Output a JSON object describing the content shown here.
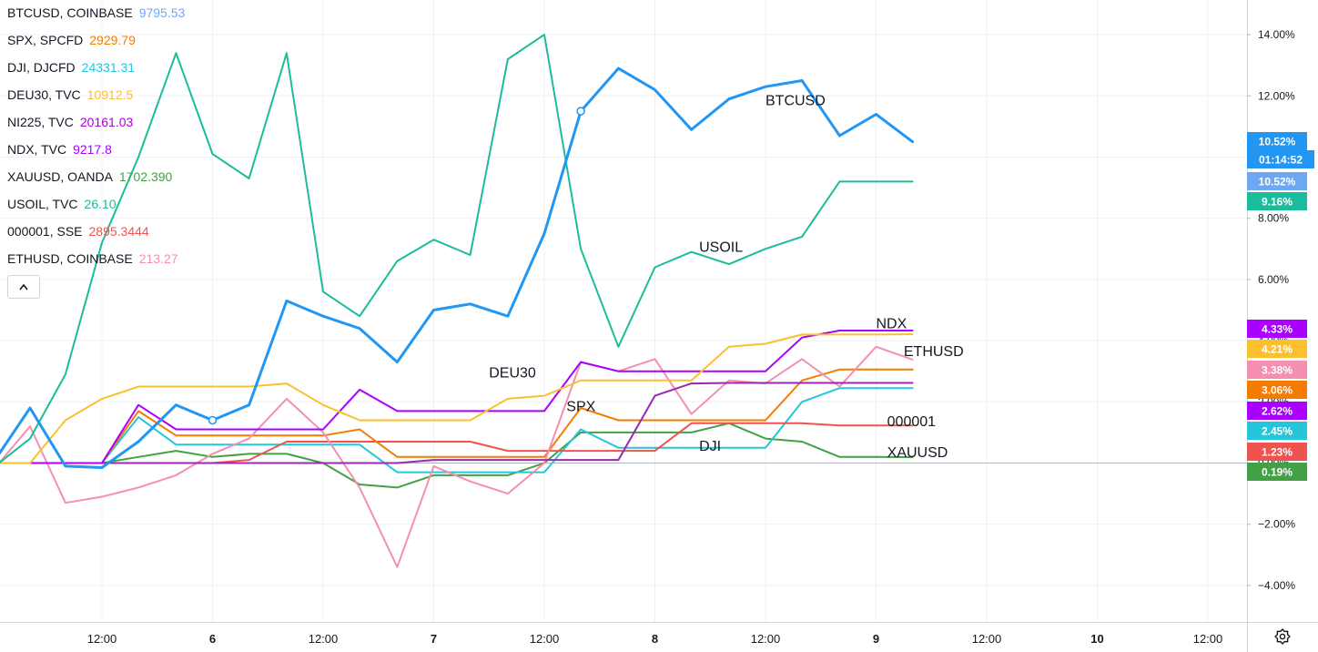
{
  "legend": [
    {
      "symbol": "BTCUSD, COINBASE",
      "value": "9795.53",
      "color": "#6fa8f2"
    },
    {
      "symbol": "SPX, SPCFD",
      "value": "2929.79",
      "color": "#f57c00"
    },
    {
      "symbol": "DJI, DJCFD",
      "value": "24331.31",
      "color": "#26c6da"
    },
    {
      "symbol": "DEU30, TVC",
      "value": "10912.5",
      "color": "#fbc02d"
    },
    {
      "symbol": "NI225, TVC",
      "value": "20161.03",
      "color": "#ab00d6"
    },
    {
      "symbol": "NDX, TVC",
      "value": "9217.8",
      "color": "#aa00ff"
    },
    {
      "symbol": "XAUUSD, OANDA",
      "value": "1702.390",
      "color": "#43a047"
    },
    {
      "symbol": "USOIL, TVC",
      "value": "26.10",
      "color": "#26b89a"
    },
    {
      "symbol": "000001, SSE",
      "value": "2895.3444",
      "color": "#ef5350"
    },
    {
      "symbol": "ETHUSD, COINBASE",
      "value": "213.27",
      "color": "#f48fb1"
    }
  ],
  "icons": {
    "collapse": "chevron-up-icon",
    "settings": "gear-icon"
  },
  "chart_data": {
    "type": "line",
    "y_unit": "percent change",
    "ylim": [
      -5,
      15
    ],
    "y_ticks": [
      "14.00%",
      "12.00%",
      "10.00%",
      "8.00%",
      "6.00%",
      "4.00%",
      "2.00%",
      "0.00%",
      "−2.00%",
      "−4.00%"
    ],
    "y_tick_values": [
      14,
      12,
      10,
      8,
      6,
      4,
      2,
      0,
      -2,
      -4
    ],
    "x_ticks": [
      "12:00",
      "6",
      "12:00",
      "7",
      "12:00",
      "8",
      "12:00",
      "9",
      "12:00",
      "10",
      "12:00"
    ],
    "x_tick_positions": [
      0,
      1,
      2,
      3,
      4,
      5,
      6,
      7,
      8,
      9,
      10
    ],
    "grid": true,
    "series": [
      {
        "name": "BTCUSD",
        "color": "#2196f3",
        "width": 3,
        "x": [
          -0.93,
          -0.65,
          -0.33,
          0,
          0.33,
          0.67,
          1,
          1.33,
          1.67,
          2,
          2.33,
          2.67,
          3,
          3.33,
          3.67,
          4,
          4.33,
          4.67,
          5,
          5.33,
          5.67,
          6,
          6.33,
          6.67,
          7,
          7.33
        ],
        "y": [
          0.3,
          1.8,
          -0.1,
          -0.15,
          0.7,
          1.9,
          1.4,
          1.9,
          5.3,
          4.8,
          4.4,
          3.3,
          5.0,
          5.2,
          4.8,
          7.5,
          11.5,
          12.9,
          12.2,
          10.9,
          11.9,
          12.3,
          12.5,
          10.7,
          11.4,
          10.5
        ],
        "label": "BTCUSD",
        "label_x": 6.0,
        "label_y": 11.7
      },
      {
        "name": "USOIL",
        "color": "#1bbc9b",
        "width": 2,
        "x": [
          -0.93,
          -0.65,
          -0.33,
          0,
          0.33,
          0.67,
          1,
          1.33,
          1.67,
          2,
          2.33,
          2.67,
          3,
          3.33,
          3.67,
          4,
          4.33,
          4.67,
          5,
          5.33,
          5.67,
          6,
          6.33,
          6.67,
          7,
          7.33
        ],
        "y": [
          0,
          0.8,
          2.9,
          7.2,
          10,
          13.4,
          10.1,
          9.3,
          13.4,
          5.6,
          4.8,
          6.6,
          7.3,
          6.8,
          13.2,
          14,
          7.0,
          3.8,
          6.4,
          6.9,
          6.5,
          7.0,
          7.4,
          9.2,
          9.2,
          9.2
        ],
        "label": "USOIL",
        "label_x": 5.4,
        "label_y": 6.9
      },
      {
        "name": "DEU30",
        "color": "#fbc02d",
        "width": 2,
        "x": [
          -0.93,
          -0.65,
          -0.33,
          0,
          0.33,
          0.67,
          1,
          1.33,
          1.67,
          2,
          2.33,
          2.67,
          3,
          3.33,
          3.67,
          4,
          4.33,
          4.67,
          5,
          5.33,
          5.67,
          6,
          6.33,
          6.67,
          7,
          7.33
        ],
        "y": [
          0,
          0,
          1.4,
          2.1,
          2.5,
          2.5,
          2.5,
          2.5,
          2.6,
          1.9,
          1.4,
          1.4,
          1.4,
          1.4,
          2.1,
          2.2,
          2.7,
          2.7,
          2.7,
          2.7,
          3.8,
          3.9,
          4.2,
          4.2,
          4.2,
          4.21
        ],
        "label": "DEU30",
        "label_x": 3.5,
        "label_y": 2.8
      },
      {
        "name": "NDX",
        "color": "#aa00ff",
        "width": 2,
        "x": [
          -0.93,
          -0.65,
          -0.33,
          0,
          0.33,
          0.67,
          1,
          1.33,
          1.67,
          2,
          2.33,
          2.67,
          3,
          3.33,
          3.67,
          4,
          4.33,
          4.67,
          5,
          5.33,
          5.67,
          6,
          6.33,
          6.67,
          7,
          7.33
        ],
        "y": [
          0,
          0,
          0,
          0,
          1.9,
          1.1,
          1.1,
          1.1,
          1.1,
          1.1,
          2.4,
          1.7,
          1.7,
          1.7,
          1.7,
          1.7,
          3.3,
          3.0,
          3.0,
          3.0,
          3.0,
          3.0,
          4.1,
          4.33,
          4.33,
          4.33
        ],
        "label": "NDX",
        "label_x": 7.0,
        "label_y": 4.4
      },
      {
        "name": "NI225",
        "color": "#9c27b0",
        "width": 2,
        "x": [
          -0.93,
          -0.65,
          -0.33,
          0,
          0.33,
          0.67,
          1,
          1.33,
          1.67,
          2,
          2.33,
          2.67,
          3,
          3.33,
          3.67,
          4,
          4.33,
          4.67,
          5,
          5.33,
          5.67,
          6,
          6.33,
          6.67,
          7,
          7.33
        ],
        "y": [
          0,
          0,
          0,
          0,
          0,
          0,
          0,
          0,
          0,
          0,
          0,
          0,
          0.1,
          0.1,
          0.1,
          0.1,
          0.1,
          0.1,
          2.2,
          2.6,
          2.62,
          2.62,
          2.62,
          2.62,
          2.62,
          2.62
        ]
      },
      {
        "name": "ETHUSD",
        "color": "#f48fb1",
        "width": 2,
        "x": [
          -0.93,
          -0.65,
          -0.33,
          0,
          0.33,
          0.67,
          1,
          1.33,
          1.67,
          2,
          2.33,
          2.67,
          3,
          3.33,
          3.67,
          4,
          4.33,
          4.67,
          5,
          5.33,
          5.67,
          6,
          6.33,
          6.67,
          7,
          7.33
        ],
        "y": [
          0,
          1.2,
          -1.3,
          -1.1,
          -0.8,
          -0.4,
          0.3,
          0.8,
          2.1,
          1.0,
          -0.8,
          -3.4,
          -0.1,
          -0.6,
          -1.0,
          0,
          3.3,
          3.0,
          3.4,
          1.6,
          2.7,
          2.6,
          3.4,
          2.5,
          3.8,
          3.38
        ],
        "label": "ETHUSD",
        "label_x": 7.25,
        "label_y": 3.5
      },
      {
        "name": "SPX",
        "color": "#f57c00",
        "width": 2,
        "x": [
          -0.93,
          -0.65,
          -0.33,
          0,
          0.33,
          0.67,
          1,
          1.33,
          1.67,
          2,
          2.33,
          2.67,
          3,
          3.33,
          3.67,
          4,
          4.33,
          4.67,
          5,
          5.33,
          5.67,
          6,
          6.33,
          6.67,
          7,
          7.33
        ],
        "y": [
          0,
          0,
          0,
          0,
          1.7,
          0.9,
          0.9,
          0.9,
          0.9,
          0.9,
          1.1,
          0.2,
          0.2,
          0.2,
          0.2,
          0.2,
          1.8,
          1.4,
          1.4,
          1.4,
          1.4,
          1.4,
          2.7,
          3.06,
          3.06,
          3.06
        ],
        "label": "SPX",
        "label_x": 4.2,
        "label_y": 1.7
      },
      {
        "name": "000001",
        "color": "#ef5350",
        "width": 2,
        "x": [
          -0.93,
          -0.65,
          -0.33,
          0,
          0.33,
          0.67,
          1,
          1.33,
          1.67,
          2,
          2.33,
          2.67,
          3,
          3.33,
          3.67,
          4,
          4.33,
          4.67,
          5,
          5.33,
          5.67,
          6,
          6.33,
          6.67,
          7,
          7.33
        ],
        "y": [
          0,
          0,
          0,
          0,
          0,
          0,
          0,
          0.1,
          0.7,
          0.7,
          0.7,
          0.7,
          0.7,
          0.7,
          0.4,
          0.4,
          0.4,
          0.4,
          0.4,
          1.3,
          1.3,
          1.3,
          1.3,
          1.23,
          1.23,
          1.23
        ],
        "label": "000001",
        "label_x": 7.1,
        "label_y": 1.2
      },
      {
        "name": "DJI",
        "color": "#26c6da",
        "width": 2,
        "x": [
          -0.93,
          -0.65,
          -0.33,
          0,
          0.33,
          0.67,
          1,
          1.33,
          1.67,
          2,
          2.33,
          2.67,
          3,
          3.33,
          3.67,
          4,
          4.33,
          4.67,
          5,
          5.33,
          5.67,
          6,
          6.33,
          6.67,
          7,
          7.33
        ],
        "y": [
          0,
          0,
          0,
          0,
          1.5,
          0.6,
          0.6,
          0.6,
          0.6,
          0.6,
          0.6,
          -0.3,
          -0.3,
          -0.3,
          -0.3,
          -0.3,
          1.1,
          0.5,
          0.5,
          0.5,
          0.5,
          0.5,
          2.0,
          2.45,
          2.45,
          2.45
        ],
        "label": "DJI",
        "label_x": 5.4,
        "label_y": 0.4
      },
      {
        "name": "XAUUSD",
        "color": "#43a047",
        "width": 2,
        "x": [
          -0.93,
          -0.65,
          -0.33,
          0,
          0.33,
          0.67,
          1,
          1.33,
          1.67,
          2,
          2.33,
          2.67,
          3,
          3.33,
          3.67,
          4,
          4.33,
          4.67,
          5,
          5.33,
          5.67,
          6,
          6.33,
          6.67,
          7,
          7.33
        ],
        "y": [
          0,
          0,
          0,
          0,
          0.2,
          0.4,
          0.2,
          0.3,
          0.3,
          0,
          -0.7,
          -0.8,
          -0.4,
          -0.4,
          -0.4,
          0,
          1.0,
          1.0,
          1.0,
          1.0,
          1.3,
          0.8,
          0.7,
          0.2,
          0.2,
          0.19
        ],
        "label": "XAUUSD",
        "label_x": 7.1,
        "label_y": 0.2
      }
    ],
    "markers": [
      {
        "series": "BTCUSD",
        "x": 1.0,
        "y": 1.4
      },
      {
        "series": "BTCUSD",
        "x": 4.33,
        "y": 11.5
      }
    ],
    "price_tags": [
      {
        "text": "10.52%",
        "value": 10.52,
        "color": "#2196f3",
        "pos": 0
      },
      {
        "text": "01:14:52",
        "value": 10.52,
        "color": "#2196f3",
        "pos": 1
      },
      {
        "text": "10.52%",
        "value": 10.52,
        "color": "#6fa8f2",
        "pos": 2
      },
      {
        "text": "9.16%",
        "value": 9.16,
        "color": "#1bbc9b",
        "pos": 3
      },
      {
        "text": "4.33%",
        "value": 4.33,
        "color": "#aa00ff",
        "pos": 4
      },
      {
        "text": "4.21%",
        "value": 4.21,
        "color": "#fbc02d",
        "pos": 5
      },
      {
        "text": "3.38%",
        "value": 3.38,
        "color": "#f48fb1",
        "pos": 6
      },
      {
        "text": "3.06%",
        "value": 3.06,
        "color": "#f57c00",
        "pos": 7
      },
      {
        "text": "2.62%",
        "value": 2.62,
        "color": "#aa00ff",
        "pos": 8
      },
      {
        "text": "2.45%",
        "value": 2.45,
        "color": "#26c6da",
        "pos": 9
      },
      {
        "text": "1.23%",
        "value": 1.23,
        "color": "#ef5350",
        "pos": 10
      },
      {
        "text": "0.19%",
        "value": 0.19,
        "color": "#43a047",
        "pos": 11
      }
    ]
  }
}
